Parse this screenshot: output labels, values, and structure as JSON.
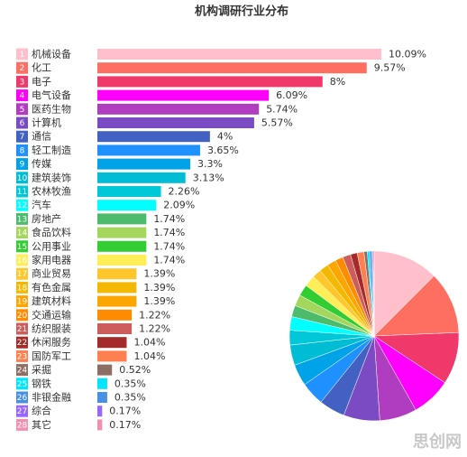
{
  "chart_data": {
    "type": "bar",
    "title": "机构调研行业分布",
    "ranks": [
      1,
      2,
      3,
      4,
      5,
      6,
      7,
      8,
      9,
      10,
      11,
      12,
      13,
      14,
      15,
      16,
      17,
      18,
      19,
      20,
      21,
      22,
      23,
      24,
      25,
      26,
      27,
      28
    ],
    "categories": [
      "机械设备",
      "化工",
      "电子",
      "电气设备",
      "医药生物",
      "计算机",
      "通信",
      "轻工制造",
      "传媒",
      "建筑装饰",
      "农林牧渔",
      "汽车",
      "房地产",
      "食品饮料",
      "公用事业",
      "家用电器",
      "商业贸易",
      "有色金属",
      "建筑材料",
      "交通运输",
      "纺织服装",
      "休闲服务",
      "国防军工",
      "采掘",
      "钢铁",
      "非银金融",
      "综合",
      "其它"
    ],
    "values": [
      10.09,
      9.57,
      8,
      6.09,
      5.74,
      5.57,
      4,
      3.65,
      3.3,
      3.13,
      2.26,
      2.09,
      1.74,
      1.74,
      1.74,
      1.74,
      1.39,
      1.39,
      1.39,
      1.22,
      1.22,
      1.04,
      1.04,
      0.52,
      0.35,
      0.35,
      0.17,
      0.17
    ],
    "value_labels": [
      "10.09%",
      "9.57%",
      "8%",
      "6.09%",
      "5.74%",
      "5.57%",
      "4%",
      "3.65%",
      "3.3%",
      "3.13%",
      "2.26%",
      "2.09%",
      "1.74%",
      "1.74%",
      "1.74%",
      "1.74%",
      "1.39%",
      "1.39%",
      "1.39%",
      "1.22%",
      "1.22%",
      "1.04%",
      "1.04%",
      "0.52%",
      "0.35%",
      "0.35%",
      "0.17%",
      "0.17%"
    ],
    "colors": [
      "#ffc0cb",
      "#ff6f61",
      "#f0386b",
      "#ff00ff",
      "#b03cbf",
      "#7b4bc4",
      "#4361c2",
      "#1e90ff",
      "#00a2e8",
      "#00bcd4",
      "#00c8d8",
      "#00ffff",
      "#4cbb6c",
      "#a4d65e",
      "#32cd32",
      "#ffee58",
      "#ffc72c",
      "#f5b800",
      "#ffa500",
      "#ff8c00",
      "#cd5c5c",
      "#a52a2a",
      "#ff7f50",
      "#8d6e63",
      "#00e5ff",
      "#4a90e2",
      "#9966ff",
      "#f48fb1"
    ],
    "inset_pie": true,
    "watermark": "思创网"
  }
}
